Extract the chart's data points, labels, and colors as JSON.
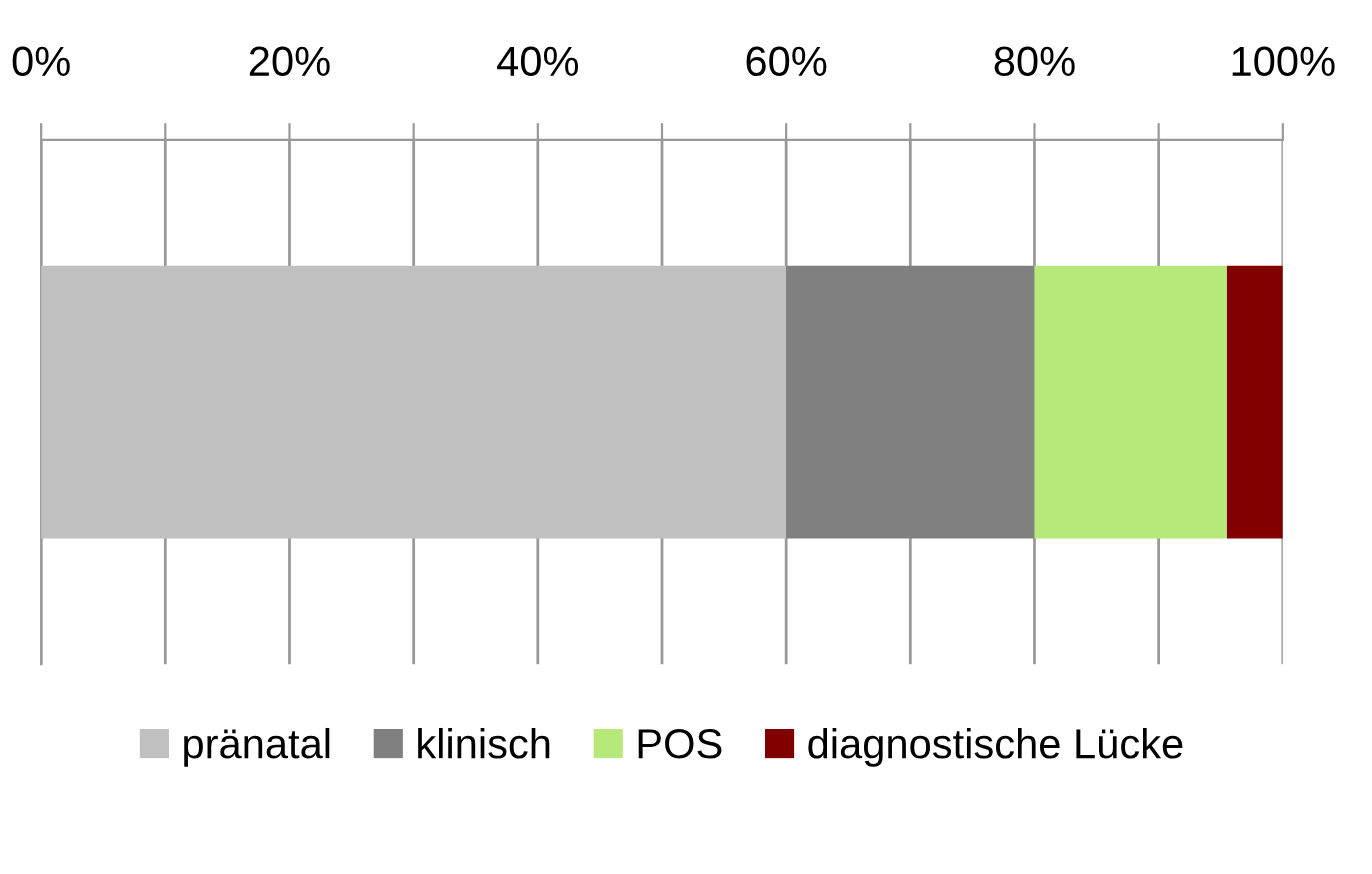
{
  "chart_data": {
    "type": "bar",
    "orientation": "horizontal",
    "stacked": true,
    "categories": [
      null
    ],
    "series": [
      {
        "name": "pränatal",
        "color": "#c0c0c0",
        "values": [
          60
        ]
      },
      {
        "name": "klinisch",
        "color": "#808080",
        "values": [
          20
        ]
      },
      {
        "name": "POS",
        "color": "#b6e87a",
        "values": [
          15.5
        ]
      },
      {
        "name": "diagnostische Lücke",
        "color": "#800000",
        "values": [
          4.5
        ]
      }
    ],
    "xlim": [
      0,
      100
    ],
    "xticks": [
      {
        "value": 0,
        "label": "0%"
      },
      {
        "value": 10,
        "label": null
      },
      {
        "value": 20,
        "label": "20%"
      },
      {
        "value": 30,
        "label": null
      },
      {
        "value": 40,
        "label": "40%"
      },
      {
        "value": 50,
        "label": null
      },
      {
        "value": 60,
        "label": "60%"
      },
      {
        "value": 70,
        "label": null
      },
      {
        "value": 80,
        "label": "80%"
      },
      {
        "value": 90,
        "label": null
      },
      {
        "value": 100,
        "label": "100%"
      }
    ],
    "grid": "x",
    "legend": "bottom",
    "tick_labels": "x"
  }
}
